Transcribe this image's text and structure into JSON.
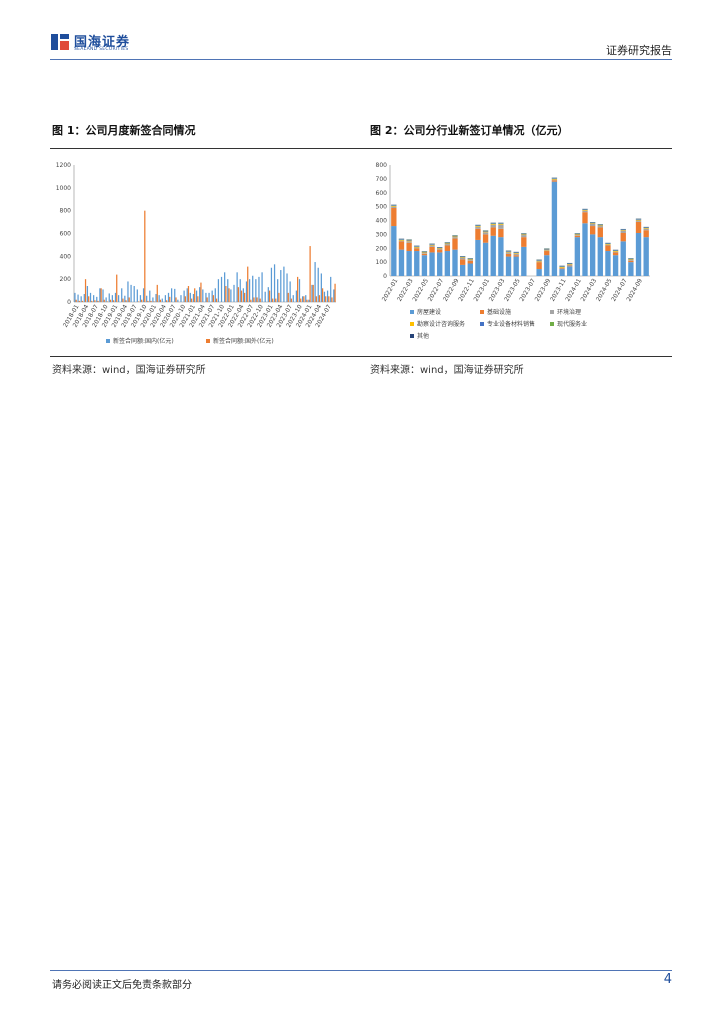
{
  "header": {
    "logo_cn": "国海证券",
    "logo_en": "SEALAND SECURITIES",
    "report_type": "证券研究报告"
  },
  "figures": [
    {
      "title": "图 1：公司月度新签合同情况",
      "source": "资料来源：wind，国海证券研究所"
    },
    {
      "title": "图 2：公司分行业新签订单情况（亿元）",
      "source": "资料来源：wind，国海证券研究所"
    }
  ],
  "footer": {
    "disclaimer": "请务必阅读正文后免责条款部分",
    "page_number": "4"
  },
  "colors": {
    "domestic": "#5b9bd5",
    "overseas": "#ed7d31",
    "rule": "#4f74b5",
    "brand": "#1f4e9c"
  },
  "chart_data": [
    {
      "type": "bar",
      "ylim": [
        0,
        1200
      ],
      "yticks": [
        0,
        200,
        400,
        600,
        800,
        1000,
        1200
      ],
      "x_tick_labels": [
        "2018-01",
        "2018-04",
        "2018-07",
        "2018-10",
        "2019-01",
        "2019-04",
        "2019-07",
        "2019-10",
        "2020-01",
        "2020-04",
        "2020-07",
        "2020-10",
        "2021-01",
        "2021-04",
        "2021-07",
        "2021-10",
        "2022-01",
        "2022-04",
        "2022-07",
        "2022-10",
        "2023-01",
        "2023-04",
        "2023-07",
        "2023-10",
        "2024-01",
        "2024-04",
        "2024-07"
      ],
      "series": [
        {
          "name": "新签合同额:国内(亿元)",
          "color": "#5b9bd5",
          "values": [
            80,
            65,
            50,
            70,
            140,
            80,
            60,
            45,
            120,
            110,
            40,
            75,
            60,
            80,
            60,
            120,
            55,
            180,
            150,
            140,
            110,
            60,
            120,
            55,
            100,
            40,
            70,
            60,
            30,
            60,
            80,
            120,
            115,
            20,
            60,
            100,
            120,
            80,
            70,
            100,
            130,
            110,
            80,
            80,
            100,
            120,
            200,
            220,
            260,
            200,
            110,
            150,
            260,
            200,
            120,
            180,
            200,
            230,
            200,
            220,
            260,
            90,
            130,
            300,
            330,
            200,
            280,
            310,
            250,
            180,
            60,
            100,
            200,
            50,
            60,
            20,
            150,
            350,
            300,
            250,
            90,
            100,
            220,
            110
          ]
        },
        {
          "name": "新签合同额:国外(亿元)",
          "color": "#ed7d31",
          "values": [
            20,
            10,
            10,
            200,
            50,
            10,
            15,
            10,
            120,
            20,
            5,
            20,
            15,
            240,
            0,
            30,
            15,
            40,
            0,
            0,
            5,
            20,
            800,
            10,
            10,
            5,
            150,
            20,
            0,
            15,
            45,
            0,
            40,
            0,
            0,
            50,
            140,
            30,
            120,
            50,
            170,
            0,
            40,
            0,
            60,
            30,
            0,
            0,
            140,
            120,
            0,
            0,
            130,
            100,
            80,
            310,
            20,
            40,
            40,
            30,
            0,
            0,
            100,
            30,
            30,
            80,
            0,
            0,
            80,
            30,
            0,
            220,
            30,
            50,
            20,
            490,
            150,
            50,
            60,
            120,
            50,
            50,
            40,
            160
          ]
        }
      ]
    },
    {
      "type": "bar",
      "ylim": [
        0,
        800
      ],
      "yticks": [
        0,
        100,
        200,
        300,
        400,
        500,
        600,
        700,
        800
      ],
      "x_tick_labels": [
        "2022-01",
        "2022-03",
        "2022-05",
        "2022-07",
        "2022-09",
        "2022-11",
        "2023-01",
        "2023-03",
        "2023-05",
        "2023-07",
        "2023-09",
        "2023-11",
        "2024-01",
        "2024-03",
        "2024-05",
        "2024-07",
        "2024-09"
      ],
      "legend": [
        "房屋建设",
        "基础设施",
        "环境治理",
        "勘察设计咨询服务",
        "专业设备材料销售",
        "现代服务业",
        "其他"
      ],
      "series": [
        {
          "name": "房屋建设",
          "color": "#5b9bd5",
          "values": [
            360,
            190,
            180,
            180,
            150,
            170,
            170,
            180,
            190,
            80,
            90,
            260,
            240,
            290,
            280,
            140,
            140,
            210,
            0,
            50,
            150,
            680,
            50,
            70,
            280,
            380,
            300,
            280,
            180,
            150,
            250,
            100,
            310,
            280
          ]
        },
        {
          "name": "基础设施",
          "color": "#ed7d31",
          "values": [
            130,
            60,
            60,
            20,
            10,
            40,
            20,
            40,
            80,
            40,
            20,
            80,
            60,
            60,
            60,
            20,
            10,
            70,
            0,
            50,
            30,
            10,
            5,
            5,
            10,
            80,
            60,
            70,
            40,
            20,
            60,
            10,
            80,
            50
          ]
        },
        {
          "name": "环境治理",
          "color": "#a5a5a5",
          "values": [
            10,
            5,
            10,
            5,
            5,
            10,
            5,
            10,
            10,
            10,
            5,
            15,
            15,
            20,
            30,
            10,
            10,
            15,
            0,
            5,
            5,
            5,
            5,
            5,
            5,
            10,
            15,
            10,
            5,
            5,
            15,
            5,
            10,
            10
          ]
        },
        {
          "name": "勘察设计咨询服务",
          "color": "#ffc000",
          "values": [
            5,
            5,
            5,
            5,
            5,
            5,
            5,
            5,
            5,
            5,
            5,
            5,
            5,
            5,
            5,
            5,
            5,
            5,
            0,
            5,
            5,
            5,
            5,
            5,
            5,
            5,
            5,
            5,
            5,
            5,
            5,
            5,
            5,
            5
          ]
        },
        {
          "name": "专业设备材料销售",
          "color": "#4472c4",
          "values": [
            5,
            5,
            5,
            5,
            5,
            5,
            5,
            5,
            5,
            5,
            5,
            5,
            5,
            5,
            5,
            5,
            5,
            5,
            0,
            5,
            5,
            5,
            5,
            5,
            5,
            5,
            5,
            5,
            5,
            5,
            5,
            5,
            5,
            5
          ]
        },
        {
          "name": "现代服务业",
          "color": "#70ad47",
          "values": [
            2,
            2,
            2,
            2,
            2,
            2,
            2,
            2,
            2,
            2,
            2,
            2,
            2,
            2,
            2,
            2,
            2,
            2,
            0,
            2,
            2,
            2,
            2,
            2,
            2,
            2,
            2,
            2,
            2,
            2,
            2,
            2,
            2,
            2
          ]
        },
        {
          "name": "其他",
          "color": "#264478",
          "values": [
            2,
            2,
            2,
            2,
            2,
            2,
            2,
            2,
            2,
            2,
            2,
            2,
            2,
            2,
            2,
            2,
            2,
            2,
            0,
            2,
            2,
            2,
            2,
            2,
            2,
            2,
            2,
            2,
            2,
            2,
            2,
            2,
            2,
            2
          ]
        }
      ]
    }
  ]
}
